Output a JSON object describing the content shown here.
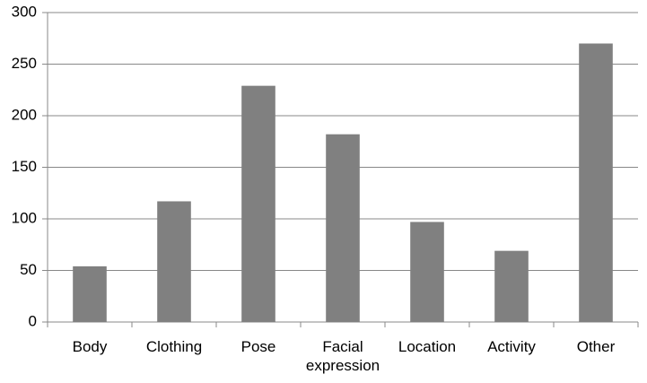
{
  "chart_data": {
    "type": "bar",
    "categories": [
      "Body",
      "Clothing",
      "Pose",
      "Facial expression",
      "Location",
      "Activity",
      "Other"
    ],
    "values": [
      54,
      117,
      229,
      182,
      97,
      69,
      270
    ],
    "color": "#808080",
    "ylim": [
      0,
      300
    ],
    "yticks": [
      0,
      50,
      100,
      150,
      200,
      250,
      300
    ],
    "grid": true
  }
}
